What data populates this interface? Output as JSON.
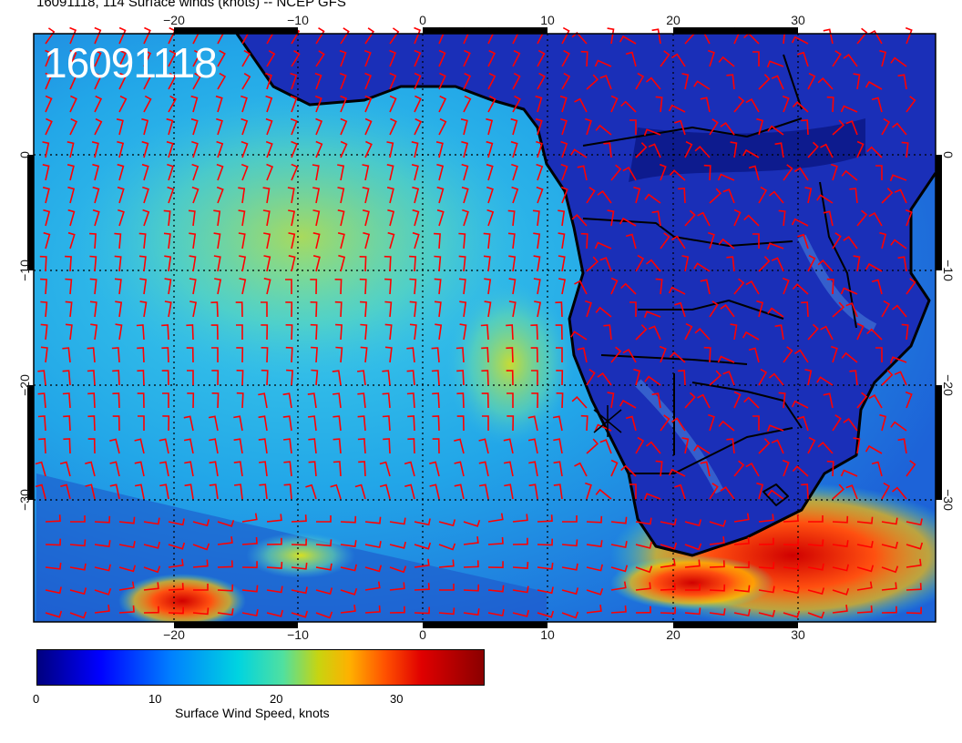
{
  "header": {
    "title": "16091118, 114 Surface winds (knots) -- NCEP GFS",
    "stamp": "16091118"
  },
  "map": {
    "lon_range": [
      -30,
      42
    ],
    "lat_range": [
      -40,
      10
    ],
    "lon_ticks": [
      "−20",
      "−10",
      "0",
      "10",
      "20",
      "30"
    ],
    "lat_ticks": [
      "0",
      "−10",
      "−20",
      "−30"
    ],
    "grid": "dotted, every 10 degrees",
    "barb_color": "#ff0000",
    "coast_color": "#000000"
  },
  "colorbar": {
    "title": "Surface Wind Speed, knots",
    "labels": [
      "0",
      "10",
      "20",
      "30"
    ],
    "range": [
      0,
      37
    ]
  }
}
